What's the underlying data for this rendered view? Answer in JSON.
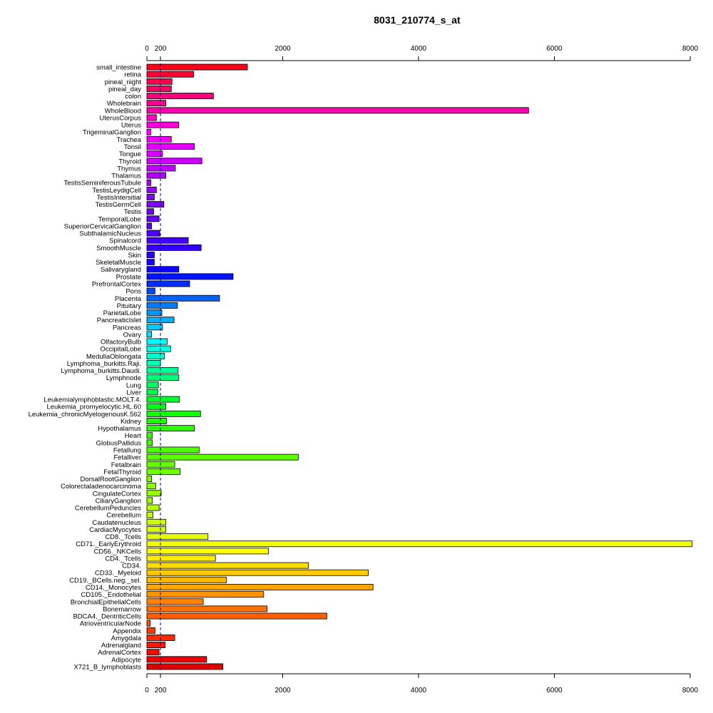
{
  "chart_data": {
    "type": "bar",
    "orientation": "horizontal",
    "title": "8031_210774_s_at",
    "xlabel": "",
    "ylabel": "",
    "xlim": [
      0,
      8000
    ],
    "x_ticks": [
      0,
      200,
      2000,
      4000,
      6000,
      8000
    ],
    "reference_line": 200,
    "grid": false,
    "categories": [
      "small_intestine",
      "retina",
      "pineal_night",
      "pineal_day",
      "colon",
      "Wholebrain",
      "WholeBlood",
      "UterusCorpus",
      "Uterus",
      "TrigeminalGanglion",
      "Trachea",
      "Tonsil",
      "Tongue",
      "Thyroid",
      "Thymus",
      "Thalamus",
      "TestisSeminiferousTubule",
      "TestisLeydigCell",
      "TestisIntersitial",
      "TestisGermCell",
      "Testis",
      "TemporalLobe",
      "SuperiorCervicalGanglion",
      "SubthalamicNucleus",
      "Spinalcord",
      "SmoothMuscle",
      "Skin",
      "SkeletalMuscle",
      "Salivarygland",
      "Prostate",
      "PrefrontalCortex",
      "Pons",
      "Placenta",
      "Pituitary",
      "ParietalLobe",
      "PancreaticIslet",
      "Pancreas",
      "Ovary",
      "OlfactoryBulb",
      "OccipitalLobe",
      "MedullaOblongata",
      "Lymphoma_burkitts.Raji.",
      "Lymphoma_burkitts.Daudi.",
      "Lymphnode",
      "Lung",
      "Liver",
      "Leukemialymphoblastic.MOLT.4.",
      "Leukemia_promyelocytic.HL.60",
      "Leukemia_chronicMyelogenousK.562",
      "Kidney",
      "Hypothalamus",
      "Heart",
      "GlobusPallidus",
      "Fetallung",
      "Fetalliver",
      "Fetalbrain",
      "FetalThyroid",
      "DorsalRootGanglion",
      "Colorectaladenocarcinoma",
      "CingulateCortex",
      "CiliaryGanglion",
      "CerebellumPeduncles",
      "Cerebellum",
      "Caudatenucleus",
      "CardiacMyocytes",
      "CD8._Tcells",
      "CD71._EarlyErythroid",
      "CD56._NKCells",
      "CD4._Tcells",
      "CD34.",
      "CD33._Myeloid",
      "CD19._BCells.neg._sel.",
      "CD14._Monocytes",
      "CD105._Endothelial",
      "BronchialEpithelialCells",
      "Bonemarrow",
      "BDCA4._DentriticCells",
      "AtrioventricularNode",
      "Appendix",
      "Amygdala",
      "Adrenalgland",
      "AdrenalCortex",
      "Adipocyte",
      "X721_B_lymphoblasts"
    ],
    "values": [
      1480,
      690,
      370,
      360,
      980,
      280,
      5620,
      140,
      470,
      60,
      360,
      700,
      230,
      810,
      420,
      280,
      60,
      140,
      110,
      250,
      100,
      180,
      70,
      190,
      610,
      800,
      110,
      110,
      470,
      1270,
      630,
      120,
      1070,
      450,
      220,
      400,
      230,
      70,
      300,
      350,
      260,
      200,
      460,
      470,
      170,
      160,
      480,
      280,
      790,
      290,
      700,
      80,
      80,
      770,
      2230,
      410,
      490,
      70,
      130,
      210,
      80,
      180,
      90,
      280,
      280,
      900,
      8030,
      1790,
      1010,
      2380,
      3260,
      1170,
      3330,
      1720,
      830,
      1770,
      2650,
      50,
      120,
      410,
      270,
      180,
      880,
      1120
    ],
    "colors": [
      "#ff0018",
      "#ff0033",
      "#ff004b",
      "#ff0063",
      "#ff007c",
      "#ff0094",
      "#ff00ad",
      "#ff00c6",
      "#ff00df",
      "#fd00f9",
      "#f100ff",
      "#e400ff",
      "#d800ff",
      "#cc00ff",
      "#bf00ff",
      "#b300ff",
      "#a600ff",
      "#9a00ff",
      "#8d00ff",
      "#8100ff",
      "#7400ff",
      "#6800ff",
      "#5b00ff",
      "#4e00ff",
      "#4200ff",
      "#3500ff",
      "#2900ff",
      "#1c00ff",
      "#1000ff",
      "#0014ff",
      "#002eff",
      "#0048ff",
      "#0062ff",
      "#007cff",
      "#0096ff",
      "#00b0ff",
      "#00caff",
      "#00e4ff",
      "#00fffe",
      "#00ffe4",
      "#00ffca",
      "#00ffb0",
      "#00ff96",
      "#00ff7c",
      "#00ff62",
      "#00ff48",
      "#00ff2e",
      "#00ff14",
      "#10ff00",
      "#1cff00",
      "#29ff00",
      "#35ff00",
      "#42ff00",
      "#4eff00",
      "#5bff00",
      "#68ff00",
      "#74ff00",
      "#81ff00",
      "#8dff00",
      "#9aff00",
      "#a6ff00",
      "#b3ff00",
      "#bfff00",
      "#ccff00",
      "#d8ff00",
      "#e4ff00",
      "#f1ff00",
      "#fdff00",
      "#ffed00",
      "#ffdc00",
      "#ffca00",
      "#ffb800",
      "#ffa600",
      "#ff9400",
      "#ff8300",
      "#ff7100",
      "#ff5f00",
      "#ff4d00",
      "#ff3b00",
      "#ff2a00",
      "#ff1800",
      "#ff0600",
      "#f00000",
      "#e00000"
    ]
  }
}
